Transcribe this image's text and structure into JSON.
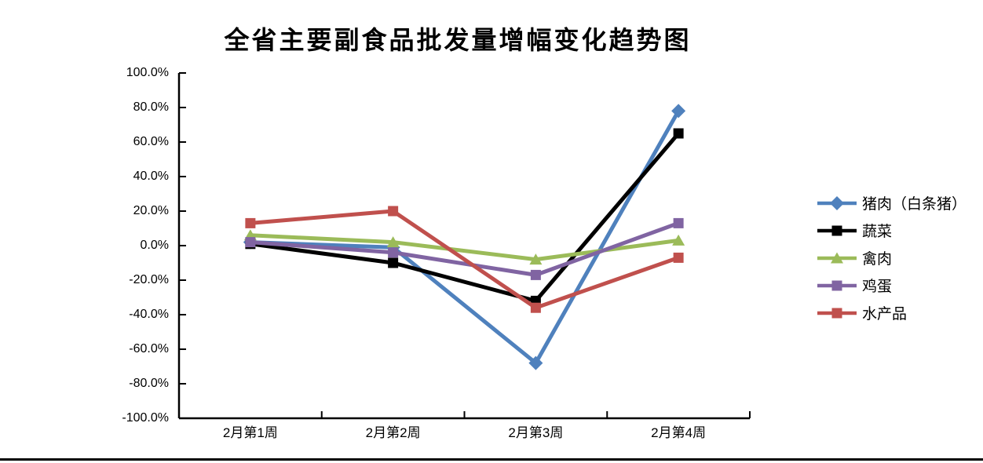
{
  "title": "全省主要副食品批发量增幅变化趋势图",
  "chart_data": {
    "type": "line",
    "title": "全省主要副食品批发量增幅变化趋势图",
    "categories": [
      "2月第1周",
      "2月第2周",
      "2月第3周",
      "2月第4周"
    ],
    "unit": "percent",
    "series": [
      {
        "name": "猪肉（白条猪）",
        "color": "#4F81BD",
        "marker": "diamond",
        "values": [
          2,
          -1,
          -68,
          78
        ]
      },
      {
        "name": "蔬菜",
        "color": "#000000",
        "marker": "square",
        "values": [
          1,
          -10,
          -32,
          65
        ]
      },
      {
        "name": "禽肉",
        "color": "#9BBB59",
        "marker": "triangle",
        "values": [
          6,
          2,
          -8,
          3
        ]
      },
      {
        "name": "鸡蛋",
        "color": "#8064A2",
        "marker": "square",
        "values": [
          2,
          -4,
          -17,
          13
        ]
      },
      {
        "name": "水产品",
        "color": "#C0504D",
        "marker": "square",
        "values": [
          13,
          20,
          -36,
          -7
        ]
      }
    ],
    "ylim": [
      -100,
      100
    ],
    "y_tick_step": 20,
    "y_tick_labels": [
      "100.0%",
      "80.0%",
      "60.0%",
      "40.0%",
      "20.0%",
      "0.0%",
      "-20.0%",
      "-40.0%",
      "-60.0%",
      "-80.0%",
      "-100.0%"
    ],
    "grid": false,
    "legend_position": "right",
    "axis_color": "#000000"
  }
}
